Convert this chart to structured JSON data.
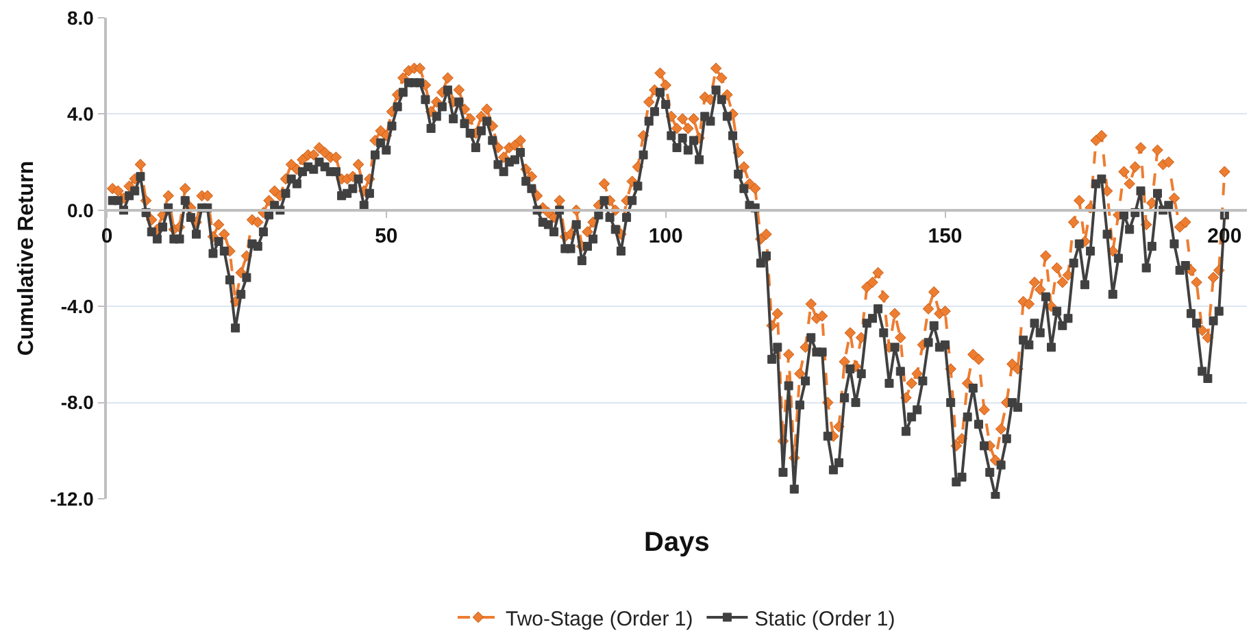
{
  "chart_data": {
    "type": "line",
    "xlabel": "Days",
    "ylabel": "Cumulative Return",
    "x": [
      1,
      2,
      3,
      4,
      5,
      6,
      7,
      8,
      9,
      10,
      11,
      12,
      13,
      14,
      15,
      16,
      17,
      18,
      19,
      20,
      21,
      22,
      23,
      24,
      25,
      26,
      27,
      28,
      29,
      30,
      31,
      32,
      33,
      34,
      35,
      36,
      37,
      38,
      39,
      40,
      41,
      42,
      43,
      44,
      45,
      46,
      47,
      48,
      49,
      50,
      51,
      52,
      53,
      54,
      55,
      56,
      57,
      58,
      59,
      60,
      61,
      62,
      63,
      64,
      65,
      66,
      67,
      68,
      69,
      70,
      71,
      72,
      73,
      74,
      75,
      76,
      77,
      78,
      79,
      80,
      81,
      82,
      83,
      84,
      85,
      86,
      87,
      88,
      89,
      90,
      91,
      92,
      93,
      94,
      95,
      96,
      97,
      98,
      99,
      100,
      101,
      102,
      103,
      104,
      105,
      106,
      107,
      108,
      109,
      110,
      111,
      112,
      113,
      114,
      115,
      116,
      117,
      118,
      119,
      120,
      121,
      122,
      123,
      124,
      125,
      126,
      127,
      128,
      129,
      130,
      131,
      132,
      133,
      134,
      135,
      136,
      137,
      138,
      139,
      140,
      141,
      142,
      143,
      144,
      145,
      146,
      147,
      148,
      149,
      150,
      151,
      152,
      153,
      154,
      155,
      156,
      157,
      158,
      159,
      160,
      161,
      162,
      163,
      164,
      165,
      166,
      167,
      168,
      169,
      170,
      171,
      172,
      173,
      174,
      175,
      176,
      177,
      178,
      179,
      180,
      181,
      182,
      183,
      184,
      185,
      186,
      187,
      188,
      189,
      190,
      191,
      192,
      193,
      194,
      195,
      196,
      197,
      198,
      199,
      200
    ],
    "series": [
      {
        "name": "Two-Stage (Order 1)",
        "color": "#ed7d31",
        "marker": "diamond",
        "line_style": "dashed",
        "values": [
          0.9,
          0.8,
          0.5,
          1.0,
          1.3,
          1.9,
          0.4,
          -0.4,
          -0.8,
          -0.2,
          0.6,
          -0.8,
          -0.7,
          0.9,
          0.1,
          -0.5,
          0.6,
          0.6,
          -1.1,
          -0.6,
          -1.0,
          -1.7,
          -3.8,
          -2.6,
          -1.9,
          -0.4,
          -0.5,
          -0.1,
          0.4,
          0.8,
          0.6,
          1.3,
          1.9,
          1.7,
          2.1,
          2.3,
          2.3,
          2.6,
          2.4,
          2.2,
          2.2,
          1.3,
          1.3,
          1.4,
          1.9,
          0.8,
          1.3,
          2.9,
          3.3,
          3.1,
          4.1,
          4.8,
          5.5,
          5.8,
          5.9,
          5.9,
          5.2,
          4.1,
          4.5,
          4.9,
          5.5,
          4.5,
          5.0,
          4.2,
          3.8,
          3.2,
          3.9,
          4.2,
          3.5,
          2.6,
          2.2,
          2.6,
          2.7,
          2.9,
          1.7,
          1.4,
          0.6,
          0.1,
          -0.1,
          -0.3,
          0.4,
          -1.1,
          -1.0,
          0.0,
          -1.5,
          -0.9,
          -0.5,
          0.2,
          1.1,
          0.4,
          0.0,
          -1.0,
          0.4,
          1.2,
          1.8,
          3.1,
          4.5,
          5.0,
          5.7,
          5.2,
          3.9,
          3.4,
          3.8,
          3.4,
          3.8,
          3.0,
          4.7,
          4.6,
          5.9,
          5.5,
          4.8,
          4.0,
          2.4,
          1.8,
          1.1,
          0.9,
          -1.2,
          -1.0,
          -4.8,
          -4.3,
          -9.6,
          -6.0,
          -10.3,
          -6.8,
          -5.7,
          -3.9,
          -4.5,
          -4.4,
          -8.0,
          -9.4,
          -9.0,
          -6.3,
          -5.1,
          -6.5,
          -5.3,
          -3.2,
          -3.0,
          -2.6,
          -3.6,
          -5.7,
          -4.3,
          -5.3,
          -7.8,
          -7.2,
          -6.8,
          -5.6,
          -4.1,
          -3.4,
          -4.3,
          -4.2,
          -6.6,
          -9.8,
          -9.5,
          -7.2,
          -6.0,
          -6.2,
          -8.3,
          -9.8,
          -10.4,
          -9.1,
          -8.0,
          -6.4,
          -6.6,
          -3.8,
          -3.9,
          -3.0,
          -3.3,
          -1.9,
          -4.0,
          -2.4,
          -3.0,
          -2.7,
          -0.5,
          0.4,
          -1.3,
          0.1,
          2.9,
          3.1,
          0.8,
          -1.7,
          -0.2,
          1.6,
          1.1,
          1.8,
          2.6,
          -0.6,
          0.3,
          2.5,
          1.9,
          2.0,
          0.5,
          -0.7,
          -0.5,
          -2.5,
          -3.0,
          -5.0,
          -5.3,
          -2.8,
          -2.5,
          1.6
        ]
      },
      {
        "name": "Static (Order 1)",
        "color": "#404040",
        "marker": "square",
        "line_style": "solid",
        "values": [
          0.4,
          0.4,
          0.0,
          0.6,
          0.8,
          1.4,
          -0.1,
          -0.9,
          -1.2,
          -0.7,
          0.1,
          -1.2,
          -1.2,
          0.4,
          -0.3,
          -1.0,
          0.1,
          0.1,
          -1.8,
          -1.3,
          -1.7,
          -2.9,
          -4.9,
          -3.5,
          -2.8,
          -1.4,
          -1.5,
          -0.9,
          -0.2,
          0.2,
          0.0,
          0.7,
          1.3,
          1.1,
          1.6,
          1.8,
          1.7,
          2.0,
          1.8,
          1.6,
          1.6,
          0.6,
          0.7,
          0.9,
          1.3,
          0.2,
          0.7,
          2.3,
          2.8,
          2.5,
          3.5,
          4.3,
          4.9,
          5.3,
          5.3,
          5.3,
          4.6,
          3.4,
          3.9,
          4.3,
          5.0,
          3.8,
          4.5,
          3.6,
          3.2,
          2.6,
          3.3,
          3.7,
          2.9,
          1.9,
          1.6,
          2.0,
          2.1,
          2.4,
          1.2,
          0.9,
          0.0,
          -0.5,
          -0.6,
          -0.9,
          0.0,
          -1.6,
          -1.6,
          -0.6,
          -2.1,
          -1.5,
          -1.2,
          -0.2,
          0.4,
          -0.3,
          -0.8,
          -1.7,
          -0.3,
          0.4,
          1.0,
          2.3,
          3.7,
          4.1,
          4.9,
          4.4,
          3.1,
          2.6,
          3.0,
          2.5,
          2.9,
          2.1,
          3.9,
          3.7,
          5.0,
          4.6,
          3.9,
          3.1,
          1.5,
          0.9,
          0.2,
          0.1,
          -2.2,
          -1.9,
          -6.2,
          -5.7,
          -10.9,
          -7.3,
          -11.6,
          -8.1,
          -7.1,
          -5.3,
          -5.9,
          -5.9,
          -9.4,
          -10.8,
          -10.5,
          -7.8,
          -6.6,
          -8.0,
          -6.8,
          -4.7,
          -4.5,
          -4.1,
          -5.1,
          -7.2,
          -5.7,
          -6.7,
          -9.2,
          -8.6,
          -8.3,
          -7.1,
          -5.5,
          -4.8,
          -5.7,
          -5.6,
          -8.0,
          -11.3,
          -11.1,
          -8.6,
          -7.4,
          -8.9,
          -9.8,
          -10.9,
          -11.9,
          -10.6,
          -9.5,
          -8.0,
          -8.2,
          -5.4,
          -5.6,
          -4.7,
          -5.1,
          -3.6,
          -5.7,
          -4.2,
          -4.8,
          -4.5,
          -2.2,
          -1.4,
          -3.1,
          -1.7,
          1.1,
          1.3,
          -1.0,
          -3.5,
          -2.0,
          -0.2,
          -0.8,
          -0.1,
          0.8,
          -2.4,
          -1.5,
          0.7,
          0.0,
          0.2,
          -1.4,
          -2.5,
          -2.3,
          -4.3,
          -4.7,
          -6.7,
          -7.0,
          -4.6,
          -4.2,
          -0.2
        ]
      }
    ],
    "xlim": [
      0,
      204
    ],
    "xticks": [
      0,
      50,
      100,
      150,
      200
    ],
    "ylim": [
      -12,
      8
    ],
    "yticks": [
      {
        "value": -12,
        "label": "-12.0"
      },
      {
        "value": -8,
        "label": "-8.0"
      },
      {
        "value": -4,
        "label": "-4.0"
      },
      {
        "value": 0,
        "label": "0.0"
      },
      {
        "value": 4,
        "label": "4.0"
      },
      {
        "value": 8,
        "label": "8.0"
      }
    ],
    "grid": "y",
    "legend": "bottom"
  }
}
